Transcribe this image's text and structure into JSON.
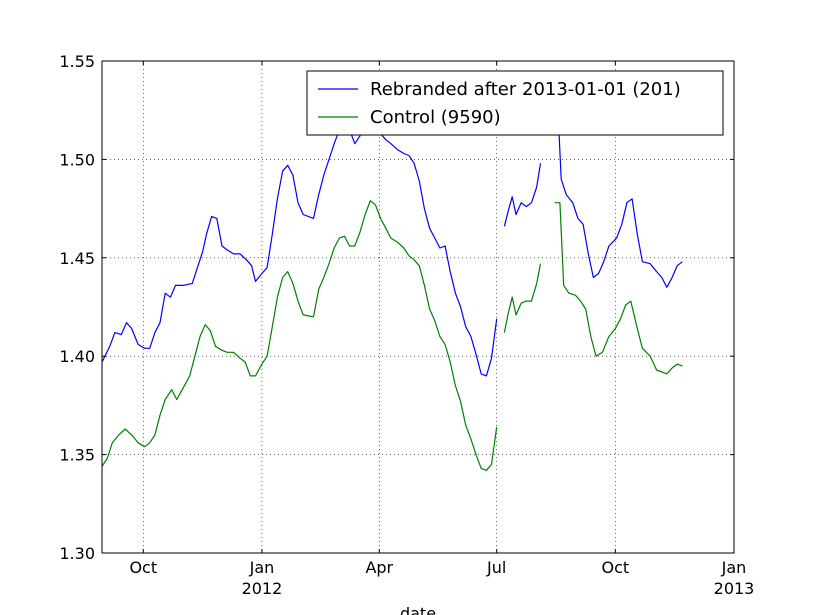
{
  "chart_data": {
    "type": "line",
    "xlabel": "date",
    "ylabel": "",
    "x_range": [
      "2011-08-30",
      "2013-01-01"
    ],
    "ylim": [
      1.3,
      1.55
    ],
    "grid": true,
    "legend_position": "top-right",
    "y_ticks": [
      {
        "value": 1.3,
        "label": "1.30"
      },
      {
        "value": 1.35,
        "label": "1.35"
      },
      {
        "value": 1.4,
        "label": "1.40"
      },
      {
        "value": 1.45,
        "label": "1.45"
      },
      {
        "value": 1.5,
        "label": "1.50"
      },
      {
        "value": 1.55,
        "label": "1.55"
      }
    ],
    "x_ticks": [
      {
        "date": "2011-10-01",
        "label": "Oct",
        "sublabel": ""
      },
      {
        "date": "2012-01-01",
        "label": "Jan",
        "sublabel": "2012"
      },
      {
        "date": "2012-04-01",
        "label": "Apr",
        "sublabel": ""
      },
      {
        "date": "2012-07-01",
        "label": "Jul",
        "sublabel": ""
      },
      {
        "date": "2012-10-01",
        "label": "Oct",
        "sublabel": ""
      },
      {
        "date": "2013-01-01",
        "label": "Jan",
        "sublabel": "2013"
      }
    ],
    "series": [
      {
        "name": "Rebranded after 2013-01-01 (201)",
        "color": "#0000ff",
        "segments": [
          [
            [
              "2011-08-30",
              1.397
            ],
            [
              "2011-09-05",
              1.405
            ],
            [
              "2011-09-09",
              1.412
            ],
            [
              "2011-09-14",
              1.411
            ],
            [
              "2011-09-18",
              1.417
            ],
            [
              "2011-09-22",
              1.414
            ],
            [
              "2011-09-27",
              1.406
            ],
            [
              "2011-10-02",
              1.404
            ],
            [
              "2011-10-06",
              1.404
            ],
            [
              "2011-10-10",
              1.412
            ],
            [
              "2011-10-14",
              1.417
            ],
            [
              "2011-10-18",
              1.432
            ],
            [
              "2011-10-22",
              1.43
            ],
            [
              "2011-10-26",
              1.436
            ],
            [
              "2011-11-01",
              1.436
            ],
            [
              "2011-11-08",
              1.437
            ],
            [
              "2011-11-12",
              1.445
            ],
            [
              "2011-11-16",
              1.453
            ],
            [
              "2011-11-19",
              1.462
            ],
            [
              "2011-11-23",
              1.471
            ],
            [
              "2011-11-27",
              1.47
            ],
            [
              "2011-12-01",
              1.456
            ],
            [
              "2011-12-05",
              1.454
            ],
            [
              "2011-12-10",
              1.452
            ],
            [
              "2011-12-15",
              1.452
            ],
            [
              "2011-12-20",
              1.449
            ],
            [
              "2011-12-24",
              1.446
            ],
            [
              "2011-12-27",
              1.438
            ],
            [
              "2012-01-01",
              1.442
            ],
            [
              "2012-01-05",
              1.445
            ],
            [
              "2012-01-09",
              1.462
            ],
            [
              "2012-01-13",
              1.48
            ],
            [
              "2012-01-17",
              1.494
            ],
            [
              "2012-01-21",
              1.497
            ],
            [
              "2012-01-25",
              1.492
            ],
            [
              "2012-01-29",
              1.478
            ],
            [
              "2012-02-02",
              1.472
            ],
            [
              "2012-02-10",
              1.47
            ],
            [
              "2012-02-14",
              1.482
            ],
            [
              "2012-02-18",
              1.492
            ],
            [
              "2012-02-22",
              1.5
            ],
            [
              "2012-02-26",
              1.508
            ],
            [
              "2012-03-01",
              1.515
            ],
            [
              "2012-03-05",
              1.52
            ],
            [
              "2012-03-09",
              1.515
            ],
            [
              "2012-03-13",
              1.508
            ],
            [
              "2012-03-17",
              1.512
            ],
            [
              "2012-03-21",
              1.52
            ],
            [
              "2012-03-25",
              1.525
            ],
            [
              "2012-03-29",
              1.52
            ],
            [
              "2012-04-02",
              1.513
            ],
            [
              "2012-04-06",
              1.51
            ],
            [
              "2012-04-10",
              1.508
            ],
            [
              "2012-04-15",
              1.505
            ],
            [
              "2012-04-20",
              1.503
            ],
            [
              "2012-04-24",
              1.502
            ],
            [
              "2012-04-28",
              1.498
            ],
            [
              "2012-05-02",
              1.489
            ],
            [
              "2012-05-06",
              1.475
            ],
            [
              "2012-05-10",
              1.465
            ],
            [
              "2012-05-14",
              1.46
            ],
            [
              "2012-05-18",
              1.455
            ],
            [
              "2012-05-22",
              1.456
            ],
            [
              "2012-05-26",
              1.443
            ],
            [
              "2012-05-30",
              1.432
            ],
            [
              "2012-06-03",
              1.425
            ],
            [
              "2012-06-07",
              1.415
            ],
            [
              "2012-06-11",
              1.41
            ],
            [
              "2012-06-15",
              1.401
            ],
            [
              "2012-06-19",
              1.391
            ],
            [
              "2012-06-23",
              1.39
            ],
            [
              "2012-06-27",
              1.399
            ],
            [
              "2012-07-01",
              1.419
            ]
          ],
          [
            [
              "2012-07-07",
              1.466
            ],
            [
              "2012-07-10",
              1.474
            ],
            [
              "2012-07-13",
              1.481
            ],
            [
              "2012-07-16",
              1.472
            ],
            [
              "2012-07-20",
              1.478
            ],
            [
              "2012-07-24",
              1.476
            ],
            [
              "2012-07-28",
              1.478
            ],
            [
              "2012-08-01",
              1.486
            ],
            [
              "2012-08-04",
              1.498
            ]
          ],
          [
            [
              "2012-08-17",
              1.532
            ],
            [
              "2012-08-20",
              1.49
            ],
            [
              "2012-08-24",
              1.482
            ],
            [
              "2012-08-29",
              1.478
            ],
            [
              "2012-09-02",
              1.47
            ],
            [
              "2012-09-06",
              1.467
            ],
            [
              "2012-09-10",
              1.452
            ],
            [
              "2012-09-14",
              1.44
            ],
            [
              "2012-09-18",
              1.442
            ],
            [
              "2012-09-22",
              1.448
            ],
            [
              "2012-09-26",
              1.456
            ],
            [
              "2012-10-02",
              1.46
            ],
            [
              "2012-10-06",
              1.467
            ],
            [
              "2012-10-10",
              1.478
            ],
            [
              "2012-10-14",
              1.48
            ],
            [
              "2012-10-18",
              1.462
            ],
            [
              "2012-10-22",
              1.448
            ],
            [
              "2012-10-28",
              1.447
            ],
            [
              "2012-11-02",
              1.443
            ],
            [
              "2012-11-06",
              1.44
            ],
            [
              "2012-11-10",
              1.435
            ],
            [
              "2012-11-14",
              1.44
            ],
            [
              "2012-11-18",
              1.446
            ],
            [
              "2012-11-22",
              1.448
            ]
          ]
        ]
      },
      {
        "name": "Control (9590)",
        "color": "#008000",
        "segments": [
          [
            [
              "2011-08-30",
              1.344
            ],
            [
              "2011-09-03",
              1.348
            ],
            [
              "2011-09-07",
              1.356
            ],
            [
              "2011-09-12",
              1.36
            ],
            [
              "2011-09-17",
              1.363
            ],
            [
              "2011-09-22",
              1.36
            ],
            [
              "2011-09-27",
              1.356
            ],
            [
              "2011-10-02",
              1.354
            ],
            [
              "2011-10-06",
              1.356
            ],
            [
              "2011-10-10",
              1.36
            ],
            [
              "2011-10-14",
              1.37
            ],
            [
              "2011-10-18",
              1.378
            ],
            [
              "2011-10-23",
              1.383
            ],
            [
              "2011-10-27",
              1.378
            ],
            [
              "2011-11-01",
              1.384
            ],
            [
              "2011-11-06",
              1.39
            ],
            [
              "2011-11-10",
              1.4
            ],
            [
              "2011-11-14",
              1.41
            ],
            [
              "2011-11-18",
              1.416
            ],
            [
              "2011-11-22",
              1.413
            ],
            [
              "2011-11-26",
              1.405
            ],
            [
              "2011-12-01",
              1.403
            ],
            [
              "2011-12-05",
              1.402
            ],
            [
              "2011-12-10",
              1.402
            ],
            [
              "2011-12-15",
              1.399
            ],
            [
              "2011-12-19",
              1.397
            ],
            [
              "2011-12-23",
              1.39
            ],
            [
              "2011-12-27",
              1.39
            ],
            [
              "2012-01-01",
              1.396
            ],
            [
              "2012-01-05",
              1.4
            ],
            [
              "2012-01-09",
              1.415
            ],
            [
              "2012-01-13",
              1.43
            ],
            [
              "2012-01-17",
              1.44
            ],
            [
              "2012-01-21",
              1.443
            ],
            [
              "2012-01-25",
              1.437
            ],
            [
              "2012-01-29",
              1.428
            ],
            [
              "2012-02-02",
              1.421
            ],
            [
              "2012-02-10",
              1.42
            ],
            [
              "2012-02-14",
              1.434
            ],
            [
              "2012-02-18",
              1.44
            ],
            [
              "2012-02-22",
              1.447
            ],
            [
              "2012-02-26",
              1.455
            ],
            [
              "2012-03-01",
              1.46
            ],
            [
              "2012-03-05",
              1.461
            ],
            [
              "2012-03-09",
              1.456
            ],
            [
              "2012-03-13",
              1.456
            ],
            [
              "2012-03-17",
              1.463
            ],
            [
              "2012-03-21",
              1.472
            ],
            [
              "2012-03-25",
              1.479
            ],
            [
              "2012-03-29",
              1.477
            ],
            [
              "2012-04-02",
              1.47
            ],
            [
              "2012-04-06",
              1.465
            ],
            [
              "2012-04-10",
              1.46
            ],
            [
              "2012-04-15",
              1.458
            ],
            [
              "2012-04-20",
              1.455
            ],
            [
              "2012-04-24",
              1.451
            ],
            [
              "2012-04-28",
              1.449
            ],
            [
              "2012-05-02",
              1.446
            ],
            [
              "2012-05-06",
              1.436
            ],
            [
              "2012-05-10",
              1.424
            ],
            [
              "2012-05-14",
              1.418
            ],
            [
              "2012-05-18",
              1.41
            ],
            [
              "2012-05-22",
              1.406
            ],
            [
              "2012-05-26",
              1.397
            ],
            [
              "2012-05-30",
              1.385
            ],
            [
              "2012-06-03",
              1.377
            ],
            [
              "2012-06-07",
              1.365
            ],
            [
              "2012-06-11",
              1.358
            ],
            [
              "2012-06-15",
              1.35
            ],
            [
              "2012-06-19",
              1.343
            ],
            [
              "2012-06-23",
              1.342
            ],
            [
              "2012-06-27",
              1.345
            ],
            [
              "2012-07-01",
              1.364
            ]
          ],
          [
            [
              "2012-07-07",
              1.412
            ],
            [
              "2012-07-10",
              1.422
            ],
            [
              "2012-07-13",
              1.43
            ],
            [
              "2012-07-16",
              1.421
            ],
            [
              "2012-07-20",
              1.427
            ],
            [
              "2012-07-24",
              1.428
            ],
            [
              "2012-07-28",
              1.428
            ],
            [
              "2012-08-01",
              1.437
            ],
            [
              "2012-08-04",
              1.447
            ]
          ],
          [
            [
              "2012-08-15",
              1.478
            ],
            [
              "2012-08-19",
              1.478
            ],
            [
              "2012-08-22",
              1.436
            ],
            [
              "2012-08-26",
              1.432
            ],
            [
              "2012-08-31",
              1.431
            ],
            [
              "2012-09-04",
              1.428
            ],
            [
              "2012-09-08",
              1.424
            ],
            [
              "2012-09-12",
              1.41
            ],
            [
              "2012-09-16",
              1.4
            ],
            [
              "2012-09-21",
              1.402
            ],
            [
              "2012-09-26",
              1.41
            ],
            [
              "2012-10-01",
              1.414
            ],
            [
              "2012-10-05",
              1.419
            ],
            [
              "2012-10-09",
              1.426
            ],
            [
              "2012-10-13",
              1.428
            ],
            [
              "2012-10-18",
              1.414
            ],
            [
              "2012-10-22",
              1.404
            ],
            [
              "2012-10-28",
              1.4
            ],
            [
              "2012-11-02",
              1.393
            ],
            [
              "2012-11-06",
              1.392
            ],
            [
              "2012-11-10",
              1.391
            ],
            [
              "2012-11-14",
              1.394
            ],
            [
              "2012-11-18",
              1.396
            ],
            [
              "2012-11-22",
              1.395
            ]
          ]
        ]
      }
    ]
  }
}
